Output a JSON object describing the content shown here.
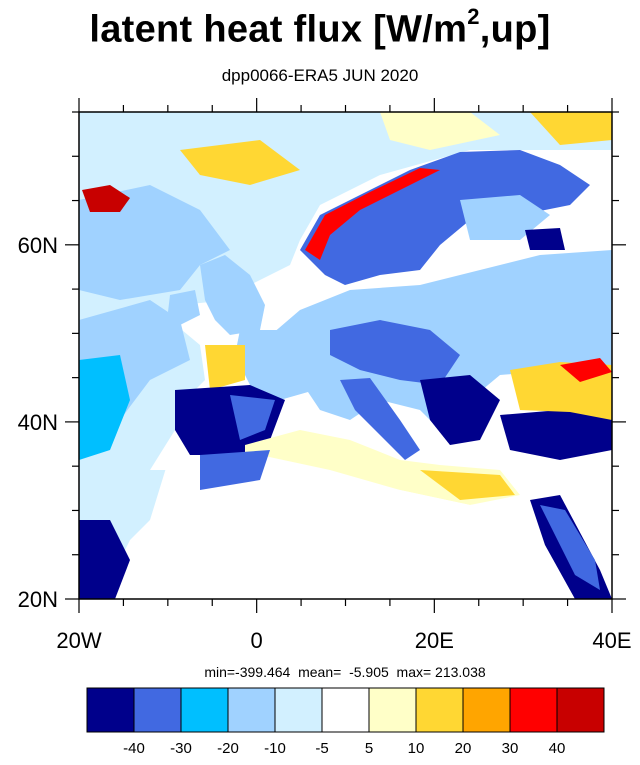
{
  "title": {
    "main": "latent heat flux [W/m",
    "sup": "2",
    "tail": ",up]"
  },
  "subtitle": "dpp0066-ERA5  JUN 2020",
  "stats": {
    "text": "min=-399.464  mean=  -5.905  max= 213.038"
  },
  "map": {
    "lon_range": [
      -20,
      40
    ],
    "lat_range": [
      20,
      75
    ],
    "lat_tick_labels": [
      {
        "value": 60,
        "label": "60N"
      },
      {
        "value": 40,
        "label": "40N"
      },
      {
        "value": 20,
        "label": "20N"
      }
    ],
    "lon_tick_labels": [
      {
        "value": -20,
        "label": "20W"
      },
      {
        "value": 0,
        "label": "0"
      },
      {
        "value": 20,
        "label": "20E"
      },
      {
        "value": 40,
        "label": "40E"
      }
    ]
  },
  "colorbar": {
    "colors": [
      "#00008b",
      "#4169e1",
      "#00bfff",
      "#a0d2ff",
      "#d2f0ff",
      "#ffffff",
      "#ffffc8",
      "#ffd733",
      "#ffa500",
      "#ff0000",
      "#c80000"
    ],
    "labels": [
      "-40",
      "-30",
      "-20",
      "-10",
      "-5",
      "5",
      "10",
      "20",
      "30",
      "40"
    ]
  }
}
